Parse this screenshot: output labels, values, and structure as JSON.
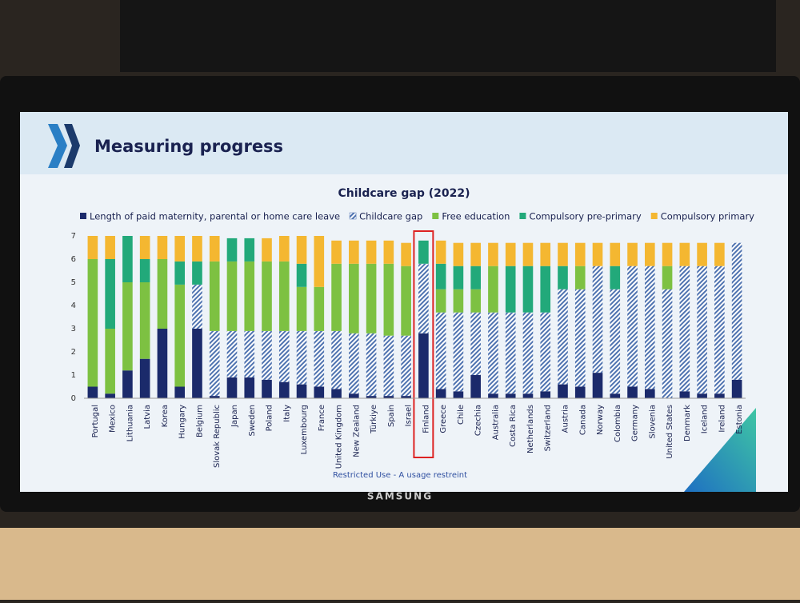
{
  "header": {
    "title": "Measuring progress"
  },
  "footer": "Restricted Use - A usage restreint",
  "brand": "SAMSUNG",
  "chart_data": {
    "type": "stacked_bar",
    "title": "Childcare gap (2022)",
    "categories": [
      "Portugal",
      "Mexico",
      "Lithuania",
      "Latvia",
      "Korea",
      "Hungary",
      "Belgium",
      "Slovak Republic",
      "Japan",
      "Sweden",
      "Poland",
      "Italy",
      "Luxembourg",
      "France",
      "United Kingdom",
      "New Zealand",
      "Türkiye",
      "Spain",
      "Israel",
      "Finland",
      "Greece",
      "Chile",
      "Czechia",
      "Australia",
      "Costa Rica",
      "Netherlands",
      "Switzerland",
      "Austria",
      "Canada",
      "Norway",
      "Colombia",
      "Germany",
      "Slovenia",
      "United States",
      "Denmark",
      "Iceland",
      "Ireland",
      "Estonia"
    ],
    "series": [
      {
        "name": "Length of paid maternity, parental or home care leave",
        "color": "#1b2a6b",
        "pattern": "solid",
        "values": [
          0.5,
          0.2,
          1.2,
          1.7,
          3,
          0.5,
          3,
          0.1,
          0.9,
          0.9,
          0.8,
          0.7,
          0.6,
          0.5,
          0.4,
          0.2,
          0.1,
          0.1,
          0.1,
          2.8,
          0.4,
          0.3,
          1,
          0.2,
          0.2,
          0.2,
          0.3,
          0.6,
          0.5,
          1.1,
          0.2,
          0.5,
          0.4,
          0,
          0.3,
          0.2,
          0.2,
          0.8
        ]
      },
      {
        "name": "Childcare gap",
        "color": "#4f73b0",
        "pattern": "hatch",
        "values": [
          0,
          0,
          0,
          0,
          0,
          0,
          1.9,
          2.8,
          2,
          2,
          2.1,
          2.2,
          2.3,
          2.4,
          2.5,
          2.6,
          2.7,
          2.6,
          2.6,
          3,
          3.3,
          3.4,
          2.7,
          3.5,
          3.5,
          3.5,
          3.4,
          4.1,
          4.2,
          4.6,
          4.5,
          5.2,
          5.3,
          4.7,
          5.4,
          5.5,
          5.5,
          5.9
        ]
      },
      {
        "name": "Free education",
        "color": "#7dc142",
        "pattern": "solid",
        "values": [
          5.5,
          2.8,
          3.8,
          3.3,
          3,
          4.4,
          0,
          3,
          3,
          3,
          3,
          3,
          1.9,
          1.9,
          2.9,
          3,
          3,
          3.1,
          3,
          0,
          1,
          1,
          1,
          2,
          0,
          0,
          0,
          0,
          1,
          0,
          0,
          0,
          0,
          1,
          0,
          0,
          0,
          0
        ]
      },
      {
        "name": "Compulsory pre-primary",
        "color": "#22a97a",
        "pattern": "solid",
        "values": [
          0,
          3,
          2,
          1,
          0,
          1,
          1,
          0,
          1,
          1,
          0,
          0,
          1,
          0,
          0,
          0,
          0,
          0,
          0,
          1,
          1.1,
          1,
          1,
          0,
          2,
          2,
          2,
          1,
          0,
          0,
          1,
          0,
          0,
          0,
          0,
          0,
          0,
          0
        ]
      },
      {
        "name": "Compulsory primary",
        "color": "#f4b731",
        "pattern": "solid",
        "values": [
          1,
          1,
          0,
          1,
          1,
          1.1,
          1.1,
          1.1,
          0,
          0,
          1,
          1.1,
          1.2,
          2.2,
          1,
          1,
          1,
          1,
          1,
          0,
          1,
          1,
          1,
          1,
          1,
          1,
          1,
          1,
          1,
          1,
          1,
          1,
          1,
          1,
          1,
          1,
          1,
          0
        ]
      }
    ],
    "ylim": [
      0,
      7
    ],
    "yticks": [
      0,
      1,
      2,
      3,
      4,
      5,
      6,
      7
    ],
    "grid": false,
    "highlight": "Finland"
  }
}
